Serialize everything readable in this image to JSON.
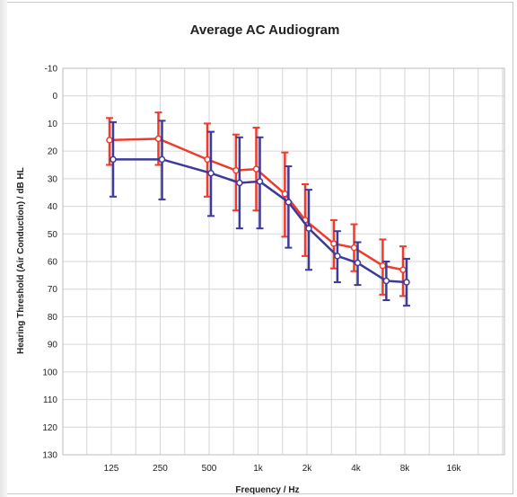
{
  "chart_data": {
    "type": "line",
    "title": "Average AC Audiogram",
    "xlabel": "Frequency / Hz",
    "ylabel": "Hearing Threshold (Air Conduction) / dB HL",
    "x_ticks": [
      "125",
      "250",
      "500",
      "1k",
      "2k",
      "4k",
      "8k",
      "16k"
    ],
    "y_ticks": [
      -10,
      0,
      10,
      20,
      30,
      40,
      50,
      60,
      70,
      80,
      90,
      100,
      110,
      120,
      130
    ],
    "ylim": [
      -10,
      130
    ],
    "y_inverted": true,
    "x_scale": "log2",
    "grid": true,
    "series": [
      {
        "color": "#ef3b2c",
        "marker": "circle",
        "x": [
          125,
          250,
          500,
          750,
          1000,
          1500,
          2000,
          3000,
          4000,
          6000,
          8000
        ],
        "y": [
          16,
          15.5,
          23,
          27,
          26.5,
          35.5,
          45,
          53.5,
          55,
          61.5,
          63
        ],
        "err_low": [
          8,
          6,
          10,
          14,
          11.5,
          20.5,
          32,
          45,
          46.5,
          52,
          54.5
        ],
        "err_high": [
          25,
          25,
          36.5,
          41.5,
          41.5,
          51,
          58,
          62.5,
          63.5,
          72,
          72.5
        ]
      },
      {
        "color": "#3c3a9a",
        "marker": "circle",
        "x": [
          125,
          250,
          500,
          750,
          1000,
          1500,
          2000,
          3000,
          4000,
          6000,
          8000
        ],
        "y": [
          23,
          23,
          28,
          31.5,
          31,
          38.5,
          48,
          58,
          60.5,
          67,
          67.5
        ],
        "err_low": [
          9.5,
          9,
          13,
          15,
          15,
          25.5,
          34,
          49,
          53,
          60,
          59
        ],
        "err_high": [
          36.5,
          37.5,
          43.5,
          48,
          48,
          55,
          63,
          67.5,
          68.5,
          74,
          76
        ]
      }
    ]
  }
}
